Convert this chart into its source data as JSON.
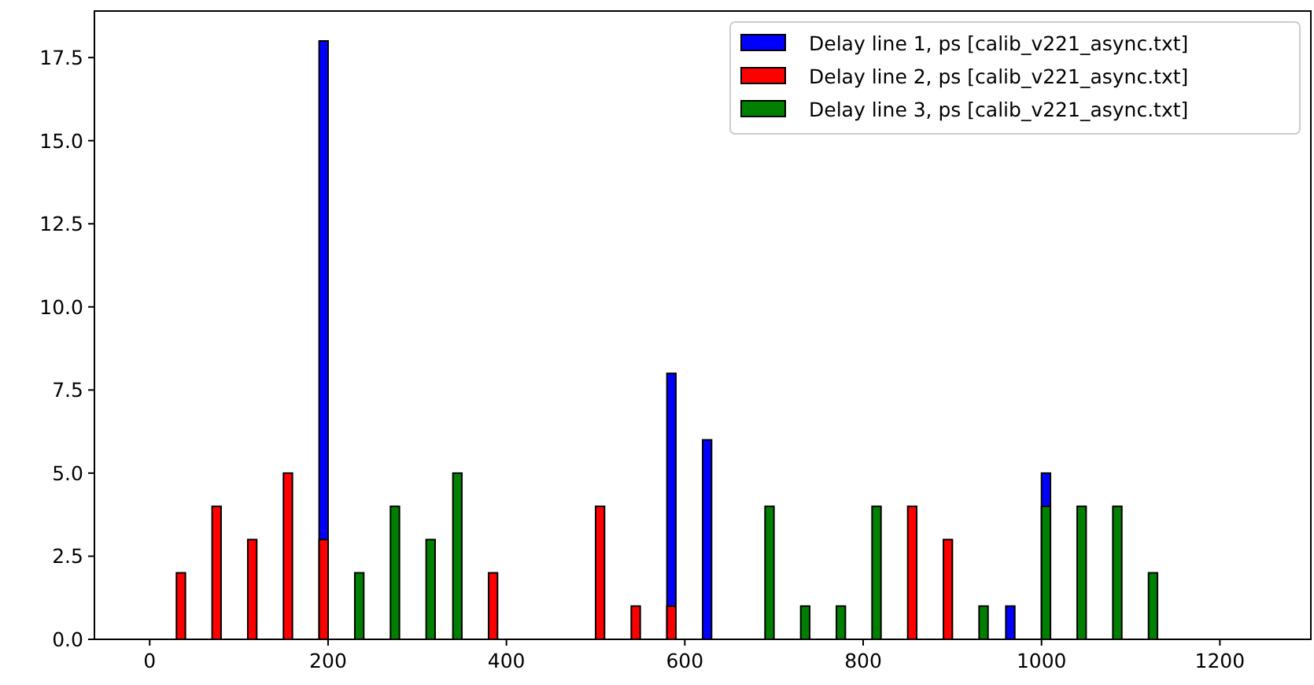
{
  "chart_data": {
    "type": "histogram",
    "bins": [
      0,
      10,
      20,
      30,
      40,
      50,
      60,
      70,
      80,
      90,
      100,
      110,
      120,
      130,
      140,
      150,
      160,
      170,
      180,
      190,
      200,
      210,
      220,
      230,
      240,
      250,
      260,
      270,
      280,
      290,
      300,
      310,
      320,
      330,
      340,
      350,
      360,
      370,
      380,
      390,
      400,
      410,
      420,
      430,
      440,
      450,
      460,
      470,
      480,
      490,
      500,
      510,
      520,
      530,
      540,
      550,
      560,
      570,
      580,
      590,
      600,
      610,
      620,
      630,
      640,
      650,
      660,
      670,
      680,
      690,
      700,
      710,
      720,
      730,
      740,
      750,
      760,
      770,
      780,
      790,
      800,
      810,
      820,
      830,
      840,
      850,
      860,
      870,
      880,
      890,
      900,
      910,
      920,
      930,
      940,
      950,
      960,
      970,
      980,
      990,
      1000,
      1010,
      1020,
      1030,
      1040,
      1050,
      1060,
      1070,
      1080,
      1090,
      1100,
      1110,
      1120,
      1130,
      1140,
      1150,
      1160,
      1170,
      1180,
      1190,
      1200,
      1210,
      1220,
      1230,
      1240
    ],
    "series": [
      {
        "name": "Delay line 1, ps [calib_v221_async.txt]",
        "color": "#0000ff",
        "values": [
          0,
          0,
          0,
          0,
          0,
          0,
          0,
          0,
          0,
          0,
          0,
          0,
          0,
          0,
          0,
          0,
          0,
          0,
          0,
          18,
          0,
          0,
          0,
          null,
          0,
          0,
          0,
          0,
          0,
          0,
          0,
          0,
          0,
          0,
          0,
          0,
          0,
          0,
          0,
          0,
          0,
          0,
          0,
          0,
          0,
          0,
          0,
          0,
          0,
          0,
          0,
          0,
          0,
          0,
          0,
          0,
          0,
          0,
          8,
          0,
          0,
          0,
          6,
          0,
          0,
          0,
          0,
          0,
          0,
          0,
          0,
          0,
          0,
          0,
          0,
          0,
          0,
          0,
          0,
          0,
          0,
          0,
          0,
          0,
          0,
          0,
          0,
          0,
          0,
          0,
          0,
          0,
          0,
          0,
          0,
          0,
          1,
          0,
          0,
          0,
          5,
          0,
          0,
          0,
          0,
          0,
          0,
          0,
          0,
          0,
          0,
          0,
          0,
          0,
          0,
          0,
          0,
          0,
          0,
          0,
          0,
          0,
          0,
          0
        ]
      },
      {
        "name": "Delay line 2, ps [calib_v221_async.txt]",
        "color": "#ff0000",
        "values": [
          0,
          0,
          0,
          2,
          0,
          0,
          0,
          4,
          0,
          0,
          0,
          3,
          0,
          0,
          0,
          5,
          0,
          0,
          0,
          3,
          0,
          0,
          0,
          0,
          0,
          0,
          0,
          0,
          0,
          0,
          0,
          0,
          0,
          0,
          0,
          0,
          0,
          0,
          2,
          0,
          0,
          0,
          0,
          0,
          0,
          0,
          0,
          0,
          0,
          0,
          4,
          0,
          0,
          0,
          1,
          0,
          0,
          0,
          1,
          0,
          0,
          0,
          0,
          0,
          0,
          0,
          0,
          0,
          0,
          0,
          0,
          0,
          0,
          0,
          0,
          0,
          0,
          0,
          0,
          0,
          0,
          0,
          0,
          0,
          0,
          4,
          0,
          0,
          0,
          3,
          0,
          0,
          0,
          0,
          0,
          0,
          0,
          0,
          0,
          0,
          0,
          0,
          0,
          0,
          0,
          0,
          0,
          0,
          0,
          0,
          0,
          0,
          0,
          0,
          0,
          0,
          0,
          0,
          0,
          0,
          0,
          0,
          0,
          0
        ]
      },
      {
        "name": "Delay line 3, ps [calib_v221_async.txt]",
        "color": "#008000",
        "values": [
          0,
          0,
          0,
          0,
          0,
          0,
          0,
          0,
          0,
          0,
          0,
          0,
          0,
          0,
          0,
          0,
          0,
          0,
          0,
          0,
          0,
          0,
          0,
          2,
          0,
          0,
          0,
          4,
          0,
          0,
          0,
          3,
          0,
          0,
          5,
          0,
          0,
          0,
          0,
          0,
          0,
          0,
          0,
          0,
          0,
          0,
          0,
          0,
          0,
          0,
          0,
          0,
          0,
          0,
          0,
          0,
          0,
          0,
          0,
          0,
          0,
          0,
          0,
          0,
          0,
          0,
          0,
          0,
          0,
          4,
          0,
          0,
          0,
          1,
          0,
          0,
          0,
          1,
          0,
          0,
          0,
          4,
          0,
          0,
          0,
          0,
          0,
          0,
          0,
          0,
          0,
          0,
          0,
          1,
          0,
          0,
          0,
          0,
          0,
          0,
          4,
          0,
          0,
          0,
          4,
          0,
          0,
          0,
          4,
          0,
          0,
          0,
          2,
          0,
          0,
          0,
          0,
          0,
          0,
          0,
          0,
          0,
          0,
          0
        ]
      }
    ],
    "xlim": [
      -62,
      1302
    ],
    "ylim": [
      0,
      18.9
    ],
    "xticks": [
      0,
      200,
      400,
      600,
      800,
      1000,
      1200
    ],
    "yticks": [
      {
        "value": 0,
        "label": "0.0"
      },
      2.5,
      {
        "value": 5,
        "label": "5.0"
      },
      7.5,
      {
        "value": 10,
        "label": "10.0"
      },
      12.5,
      {
        "value": 15,
        "label": "15.0"
      },
      17.5
    ],
    "grid": false,
    "legend": "top right"
  }
}
